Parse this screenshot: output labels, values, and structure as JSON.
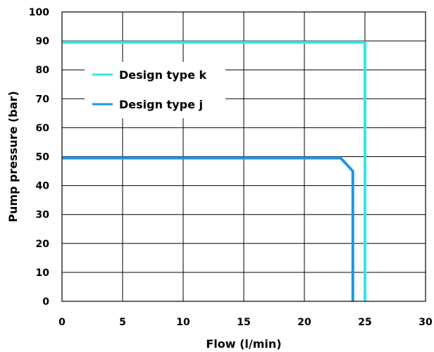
{
  "chart_data": {
    "type": "line",
    "title": "",
    "xlabel": "Flow (l/min)",
    "ylabel": "Pump pressure (bar)",
    "xlim": [
      0,
      30
    ],
    "ylim": [
      0,
      100
    ],
    "xticks": [
      0,
      5,
      10,
      15,
      20,
      25,
      30
    ],
    "yticks": [
      0,
      10,
      20,
      30,
      40,
      50,
      60,
      70,
      80,
      90,
      100
    ],
    "grid": true,
    "legend_position": "upper-left",
    "series": [
      {
        "name": "Design type k",
        "color": "#33e6e6",
        "x": [
          0,
          25,
          25
        ],
        "y": [
          89.5,
          89.5,
          0
        ]
      },
      {
        "name": "Design type j",
        "color": "#2196e3",
        "x": [
          0,
          23,
          24,
          24
        ],
        "y": [
          49.5,
          49.5,
          45,
          0
        ]
      }
    ]
  }
}
